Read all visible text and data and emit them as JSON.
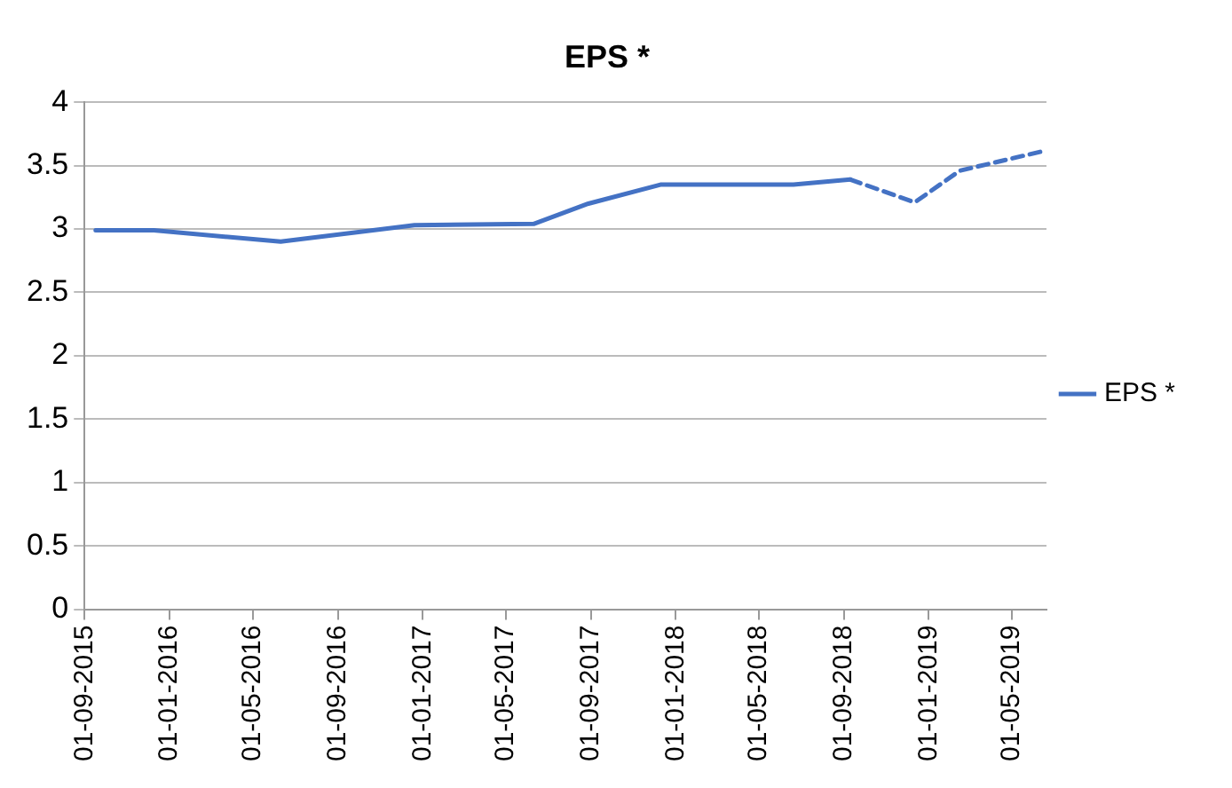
{
  "chart_data": {
    "type": "line",
    "title": "EPS *",
    "legend": "right",
    "grid": "y",
    "marker": "none",
    "xlim": [
      "2015-09-01",
      "2019-06-20"
    ],
    "xticks": [
      {
        "value": "2015-09-01",
        "label": "01-09-2015"
      },
      {
        "value": "2016-01-01",
        "label": "01-01-2016"
      },
      {
        "value": "2016-05-01",
        "label": "01-05-2016"
      },
      {
        "value": "2016-09-01",
        "label": "01-09-2016"
      },
      {
        "value": "2017-01-01",
        "label": "01-01-2017"
      },
      {
        "value": "2017-05-01",
        "label": "01-05-2017"
      },
      {
        "value": "2017-09-01",
        "label": "01-09-2017"
      },
      {
        "value": "2018-01-01",
        "label": "01-01-2018"
      },
      {
        "value": "2018-05-01",
        "label": "01-05-2018"
      },
      {
        "value": "2018-09-01",
        "label": "01-09-2018"
      },
      {
        "value": "2019-01-01",
        "label": "01-01-2019"
      },
      {
        "value": "2019-05-01",
        "label": "01-05-2019"
      }
    ],
    "ylim": [
      0,
      4
    ],
    "yticks": [
      0,
      0.5,
      1,
      1.5,
      2,
      2.5,
      3,
      3.5,
      4
    ],
    "series": [
      {
        "name": "EPS *",
        "color": "#4472c4",
        "line_style": "solid",
        "x": [
          "2015-09-17",
          "2015-12-10",
          "2016-06-10",
          "2016-12-20",
          "2017-06-10",
          "2017-08-28",
          "2017-12-10",
          "2018-06-20",
          "2018-09-10"
        ],
        "values": [
          2.99,
          2.99,
          2.9,
          3.03,
          3.04,
          3.2,
          3.35,
          3.35,
          3.39
        ]
      },
      {
        "color": "#4472c4",
        "line_style": "dashed",
        "x": [
          "2018-09-10",
          "2018-12-12",
          "2019-02-15",
          "2019-06-12"
        ],
        "values": [
          3.39,
          3.21,
          3.46,
          3.61
        ]
      }
    ]
  }
}
